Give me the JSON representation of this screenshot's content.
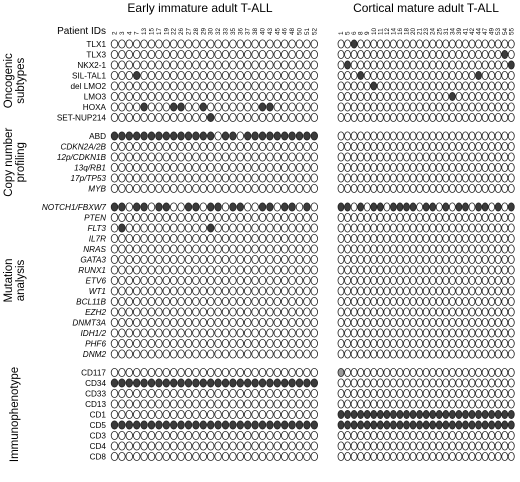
{
  "header": {
    "patient_ids_label": "Patient IDs",
    "group_early": "Early immature adult T-ALL",
    "group_cortical": "Cortical mature adult T-ALL"
  },
  "patients_early": [
    "2",
    "3",
    "4",
    "7",
    "13",
    "15",
    "17",
    "19",
    "22",
    "26",
    "27",
    "28",
    "29",
    "30",
    "32",
    "33",
    "35",
    "36",
    "37",
    "38",
    "40",
    "43",
    "45",
    "46",
    "48",
    "50",
    "51",
    "52"
  ],
  "patients_cortical": [
    "1",
    "5",
    "6",
    "8",
    "9",
    "10",
    "11",
    "12",
    "14",
    "16",
    "18",
    "20",
    "21",
    "23",
    "24",
    "25",
    "31",
    "34",
    "39",
    "41",
    "42",
    "44",
    "47",
    "49",
    "53",
    "54",
    "55"
  ],
  "colors": {
    "filled": "#3b3b3b",
    "gray": "#9a9a9a",
    "empty": "#ffffff",
    "stroke": "#222222"
  },
  "sections": [
    {
      "label_lines": [
        "Oncogenic",
        "subtypes"
      ],
      "rows": [
        {
          "label": "TLX1",
          "italic": false,
          "early": "0000000000000000000000000000",
          "cortical": "001000000000000000000000000"
        },
        {
          "label": "TLX3",
          "italic": false,
          "early": "0000000000000000000000000000",
          "cortical": "000000000000000000000000010"
        },
        {
          "label": "NKX2-1",
          "italic": false,
          "early": "0000000000000000000000000000",
          "cortical": "010000000000000000000000001"
        },
        {
          "label": "SIL-TAL1",
          "italic": false,
          "early": "0001000000000000000000000000",
          "cortical": "000100000000000000000100000"
        },
        {
          "label": "del LMO2",
          "italic": false,
          "early": "0000000000000000000000000000",
          "cortical": "000001000000000000000000000"
        },
        {
          "label": "LMO3",
          "italic": false,
          "early": "0000000000000000000000000000",
          "cortical": "000000000000000001000000000"
        },
        {
          "label": "HOXA",
          "italic": false,
          "early": "0000100011001000000011000000",
          "cortical": "000000000000000000000000000"
        },
        {
          "label": "SET-NUP214",
          "italic": false,
          "early": "0000000000000100000000000000",
          "cortical": "000000000000000000000000000"
        }
      ]
    },
    {
      "label_lines": [
        "Copy number",
        "profiling"
      ],
      "rows": [
        {
          "label": "ABD",
          "italic": false,
          "early": "1111111111111101101111111111",
          "cortical": "000000000000000000000000000"
        },
        {
          "label": "CDKN2A/2B",
          "italic": true,
          "early": "0000000000000000000000000000",
          "cortical": "000000000000000000000000000"
        },
        {
          "label": "12p/CDKN1B",
          "italic": true,
          "early": "0000000000000000000000000000",
          "cortical": "000000000000000000000000000"
        },
        {
          "label": "13q/RB1",
          "italic": true,
          "early": "0000000000000000000000000000",
          "cortical": "000000000000000000000000000"
        },
        {
          "label": "17p/TP53",
          "italic": true,
          "early": "0000000000000000000000000000",
          "cortical": "000000000000000000000000000"
        },
        {
          "label": "MYB",
          "italic": true,
          "early": "0000000000000000000000000000",
          "cortical": "000000000000000000000000000"
        }
      ]
    },
    {
      "label_lines": [
        "Mutation",
        "analysis"
      ],
      "rows": [
        {
          "label": "NOTCH1/FBXW7",
          "italic": true,
          "early": "1101101100110110110011011010",
          "cortical": "110101101111011010110110101"
        },
        {
          "label": "PTEN",
          "italic": true,
          "early": "0000000000000000000000000000",
          "cortical": "000000000000000000000000000"
        },
        {
          "label": "FLT3",
          "italic": true,
          "early": "0100000000000100000000000000",
          "cortical": "000000000000000000000000000"
        },
        {
          "label": "IL7R",
          "italic": true,
          "early": "0000000000000000000000000000",
          "cortical": "000000000000000000000000000"
        },
        {
          "label": "NRAS",
          "italic": true,
          "early": "0000000000000000000000000000",
          "cortical": "000000000000000000000000000"
        },
        {
          "label": "GATA3",
          "italic": true,
          "early": "0000000000000000000000000000",
          "cortical": "000000000000000000000000000"
        },
        {
          "label": "RUNX1",
          "italic": true,
          "early": "0000000000000000000000000000",
          "cortical": "000000000000000000000000000"
        },
        {
          "label": "ETV6",
          "italic": true,
          "early": "0000000000000000000000000000",
          "cortical": "000000000000000000000000000"
        },
        {
          "label": "WT1",
          "italic": true,
          "early": "0000000000000000000000000000",
          "cortical": "000000000000000000000000000"
        },
        {
          "label": "BCL11B",
          "italic": true,
          "early": "0000000000000000000000000000",
          "cortical": "000000000000000000000000000"
        },
        {
          "label": "EZH2",
          "italic": true,
          "early": "0000000000000000000000000000",
          "cortical": "000000000000000000000000000"
        },
        {
          "label": "DNMT3A",
          "italic": true,
          "early": "0000000000000000000000000000",
          "cortical": "000000000000000000000000000"
        },
        {
          "label": "IDH1/2",
          "italic": true,
          "early": "0000000000000000000000000000",
          "cortical": "000000000000000000000000000"
        },
        {
          "label": "PHF6",
          "italic": true,
          "early": "0000000000000000000000000000",
          "cortical": "000000000000000000000000000"
        },
        {
          "label": "DNM2",
          "italic": true,
          "early": "0000000000000000000000000000",
          "cortical": "000000000000000000000000000"
        }
      ]
    },
    {
      "label_lines": [
        "Immunophenotype"
      ],
      "rows": [
        {
          "label": "CD117",
          "italic": false,
          "early": "0000000000000000000000000000",
          "cortical": "200000000000000000000000000"
        },
        {
          "label": "CD34",
          "italic": false,
          "early": "1111111111111111111111111111",
          "cortical": "000000000000000000000000000"
        },
        {
          "label": "CD33",
          "italic": false,
          "early": "0000000000000000000000000000",
          "cortical": "000000000000000000000000000"
        },
        {
          "label": "CD13",
          "italic": false,
          "early": "0000000000000000000000000000",
          "cortical": "000000000000000000000000000"
        },
        {
          "label": "CD1",
          "italic": false,
          "early": "0000000000000000000000000000",
          "cortical": "111111111111111111111111111"
        },
        {
          "label": "CD5",
          "italic": false,
          "early": "1111111111111111111111111111",
          "cortical": "111111111111111111111111111"
        },
        {
          "label": "CD3",
          "italic": false,
          "early": "0000000000000000000000000000",
          "cortical": "000000000000000000000000000"
        },
        {
          "label": "CD4",
          "italic": false,
          "early": "0000000000000000000000000000",
          "cortical": "000000000000000000000000000"
        },
        {
          "label": "CD8",
          "italic": false,
          "early": "0000000000000000000000000000",
          "cortical": "000000000000000000000000000"
        }
      ]
    }
  ]
}
